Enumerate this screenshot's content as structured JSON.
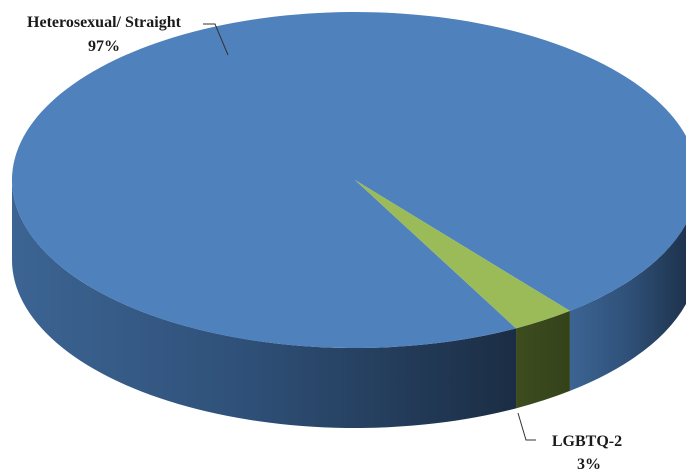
{
  "chart_data": {
    "type": "pie",
    "title": "",
    "slices": [
      {
        "label": "Heterosexual/ Straight",
        "value": 97,
        "value_label": "97%",
        "color": "#4f81bd"
      },
      {
        "label": "LGBTQ-2",
        "value": 3,
        "value_label": "3%",
        "color": "#9bbb59"
      }
    ],
    "style": "3d",
    "legend": "none"
  }
}
